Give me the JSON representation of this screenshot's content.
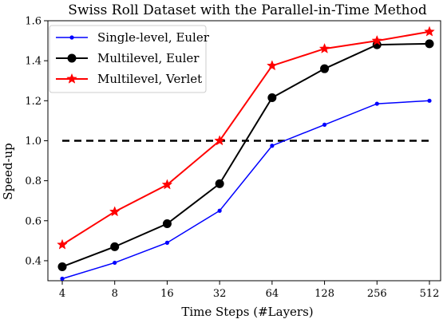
{
  "chart_data": {
    "type": "line",
    "title": "Swiss Roll Dataset with the Parallel-in-Time Method",
    "xlabel": "Time Steps (#Layers)",
    "ylabel": "Speed-up",
    "categories": [
      "4",
      "8",
      "16",
      "32",
      "64",
      "128",
      "256",
      "512"
    ],
    "ylim": [
      0.3,
      1.6
    ],
    "yticks": [
      "0.4",
      "0.6",
      "0.8",
      "1.0",
      "1.2",
      "1.4",
      "1.6"
    ],
    "reference_line": {
      "y": 1.0,
      "style": "dashed",
      "color": "#000000"
    },
    "legend_position": "top-left",
    "grid": false,
    "series": [
      {
        "name": "Single-level, Euler",
        "color": "#0000ff",
        "marker": "dot",
        "values": [
          0.31,
          0.39,
          0.49,
          0.65,
          0.975,
          1.08,
          1.185,
          1.2
        ]
      },
      {
        "name": "Multilevel, Euler",
        "color": "#000000",
        "marker": "circle",
        "values": [
          0.37,
          0.47,
          0.585,
          0.785,
          1.215,
          1.36,
          1.48,
          1.485
        ]
      },
      {
        "name": "Multilevel, Verlet",
        "color": "#ff0000",
        "marker": "star",
        "values": [
          0.48,
          0.645,
          0.78,
          1.0,
          1.375,
          1.46,
          1.5,
          1.545
        ]
      }
    ]
  }
}
